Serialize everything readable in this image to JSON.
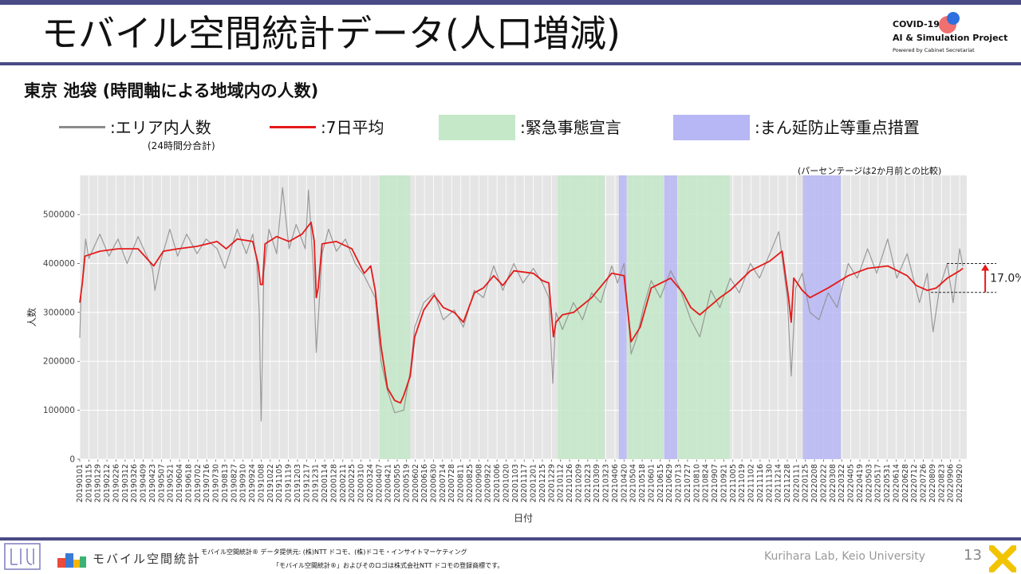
{
  "header": {
    "title": "モバイル空間統計データ(人口増減)",
    "badge": {
      "line1": "COVID-19",
      "line2": "AI & Simulation Project",
      "line3": "Powered by Cabinet Secretariat",
      "colors": {
        "red": "#f07070",
        "blue": "#2f6fe0"
      }
    }
  },
  "subtitle": "東京 池袋 (時間軸による地域内の人数)",
  "legend": {
    "daily": ":エリア内人数",
    "daily_note": "(24時間分合計)",
    "avg": ":7日平均",
    "emergency": ":緊急事態宣言",
    "prevention": ":まん延防止等重点措置",
    "colors": {
      "daily": "#8c8c8c",
      "avg": "#e41a1a",
      "emergency": "#c4e8c8",
      "prevention": "#b7b7f5"
    }
  },
  "compare_note": "(パーセンテージは2か月前との比較)",
  "chart_data": {
    "type": "line",
    "xlabel": "日付",
    "ylabel": "人数",
    "ylim": [
      0,
      580000
    ],
    "yticks": [
      0,
      100000,
      200000,
      300000,
      400000,
      500000
    ],
    "ytick_labels": [
      "0",
      "100000",
      "200000",
      "300000",
      "400000",
      "500000"
    ],
    "grid": true,
    "xtick_labels": [
      "20190101",
      "20190115",
      "20190129",
      "20190212",
      "20190226",
      "20190312",
      "20190326",
      "20190409",
      "20190423",
      "20190507",
      "20190521",
      "20190604",
      "20190618",
      "20190702",
      "20190716",
      "20190730",
      "20190813",
      "20190827",
      "20190910",
      "20190924",
      "20191008",
      "20191022",
      "20191105",
      "20191119",
      "20191203",
      "20191217",
      "20191231",
      "20200114",
      "20200128",
      "20200211",
      "20200225",
      "20200310",
      "20200324",
      "20200407",
      "20200421",
      "20200505",
      "20200519",
      "20200602",
      "20200616",
      "20200630",
      "20200714",
      "20200728",
      "20200811",
      "20200825",
      "20200908",
      "20200922",
      "20201006",
      "20201020",
      "20201103",
      "20201117",
      "20201201",
      "20201215",
      "20201229",
      "20210112",
      "20210126",
      "20210209",
      "20210223",
      "20210309",
      "20210323",
      "20210406",
      "20210420",
      "20210504",
      "20210518",
      "20210601",
      "20210615",
      "20210629",
      "20210713",
      "20210727",
      "20210810",
      "20210824",
      "20210907",
      "20210921",
      "20211005",
      "20211019",
      "20211102",
      "20211116",
      "20211130",
      "20211214",
      "20211228",
      "20220111",
      "20220125",
      "20220208",
      "20220222",
      "20220308",
      "20220322",
      "20220405",
      "20220419",
      "20220503",
      "20220517",
      "20220531",
      "20220614",
      "20220628",
      "20220712",
      "20220726",
      "20220809",
      "20220823",
      "20220906",
      "20220920"
    ],
    "periods": [
      {
        "type": "emergency",
        "start": "20200407",
        "end": "20200525"
      },
      {
        "type": "emergency",
        "start": "20210108",
        "end": "20210321"
      },
      {
        "type": "prevention",
        "start": "20210412",
        "end": "20210424"
      },
      {
        "type": "emergency",
        "start": "20210425",
        "end": "20210620"
      },
      {
        "type": "prevention",
        "start": "20210621",
        "end": "20210711"
      },
      {
        "type": "emergency",
        "start": "20210712",
        "end": "20210930"
      },
      {
        "type": "prevention",
        "start": "20220121",
        "end": "20220321"
      }
    ],
    "series": [
      {
        "key": "daily",
        "points": [
          [
            "20190101",
            248000
          ],
          [
            "20190103",
            335000
          ],
          [
            "20190106",
            380000
          ],
          [
            "20190110",
            450000
          ],
          [
            "20190115",
            410000
          ],
          [
            "20190201",
            460000
          ],
          [
            "20190215",
            415000
          ],
          [
            "20190301",
            450000
          ],
          [
            "20190315",
            400000
          ],
          [
            "20190401",
            455000
          ],
          [
            "20190423",
            390000
          ],
          [
            "20190427",
            345000
          ],
          [
            "20190506",
            405000
          ],
          [
            "20190520",
            470000
          ],
          [
            "20190601",
            415000
          ],
          [
            "20190615",
            460000
          ],
          [
            "20190701",
            420000
          ],
          [
            "20190715",
            450000
          ],
          [
            "20190801",
            430000
          ],
          [
            "20190813",
            390000
          ],
          [
            "20190901",
            470000
          ],
          [
            "20190915",
            420000
          ],
          [
            "20190925",
            460000
          ],
          [
            "20191001",
            405000
          ],
          [
            "20191005",
            300000
          ],
          [
            "20191008",
            78000
          ],
          [
            "20191012",
            380000
          ],
          [
            "20191020",
            470000
          ],
          [
            "20191101",
            420000
          ],
          [
            "20191110",
            555000
          ],
          [
            "20191120",
            430000
          ],
          [
            "20191201",
            480000
          ],
          [
            "20191215",
            430000
          ],
          [
            "20191220",
            550000
          ],
          [
            "20191228",
            380000
          ],
          [
            "20200101",
            218000
          ],
          [
            "20200110",
            420000
          ],
          [
            "20200120",
            470000
          ],
          [
            "20200201",
            425000
          ],
          [
            "20200215",
            450000
          ],
          [
            "20200301",
            400000
          ],
          [
            "20200315",
            375000
          ],
          [
            "20200401",
            330000
          ],
          [
            "20200410",
            200000
          ],
          [
            "20200420",
            140000
          ],
          [
            "20200501",
            95000
          ],
          [
            "20200515",
            100000
          ],
          [
            "20200525",
            180000
          ],
          [
            "20200601",
            270000
          ],
          [
            "20200615",
            320000
          ],
          [
            "20200701",
            340000
          ],
          [
            "20200715",
            285000
          ],
          [
            "20200801",
            305000
          ],
          [
            "20200815",
            270000
          ],
          [
            "20200901",
            345000
          ],
          [
            "20200915",
            330000
          ],
          [
            "20201001",
            395000
          ],
          [
            "20201015",
            345000
          ],
          [
            "20201101",
            400000
          ],
          [
            "20201115",
            360000
          ],
          [
            "20201201",
            390000
          ],
          [
            "20201215",
            360000
          ],
          [
            "20201225",
            330000
          ],
          [
            "20201231",
            155000
          ],
          [
            "20210105",
            300000
          ],
          [
            "20210115",
            265000
          ],
          [
            "20210201",
            320000
          ],
          [
            "20210215",
            285000
          ],
          [
            "20210301",
            340000
          ],
          [
            "20210315",
            320000
          ],
          [
            "20210401",
            395000
          ],
          [
            "20210410",
            360000
          ],
          [
            "20210420",
            400000
          ],
          [
            "20210501",
            215000
          ],
          [
            "20210510",
            250000
          ],
          [
            "20210520",
            310000
          ],
          [
            "20210601",
            365000
          ],
          [
            "20210615",
            330000
          ],
          [
            "20210701",
            385000
          ],
          [
            "20210715",
            350000
          ],
          [
            "20210801",
            285000
          ],
          [
            "20210815",
            250000
          ],
          [
            "20210901",
            345000
          ],
          [
            "20210915",
            310000
          ],
          [
            "20211001",
            370000
          ],
          [
            "20211015",
            340000
          ],
          [
            "20211101",
            400000
          ],
          [
            "20211115",
            370000
          ],
          [
            "20211201",
            420000
          ],
          [
            "20211215",
            465000
          ],
          [
            "20211228",
            330000
          ],
          [
            "20220103",
            170000
          ],
          [
            "20220110",
            350000
          ],
          [
            "20220120",
            380000
          ],
          [
            "20220201",
            300000
          ],
          [
            "20220215",
            285000
          ],
          [
            "20220301",
            340000
          ],
          [
            "20220315",
            310000
          ],
          [
            "20220401",
            400000
          ],
          [
            "20220415",
            370000
          ],
          [
            "20220501",
            430000
          ],
          [
            "20220515",
            380000
          ],
          [
            "20220601",
            450000
          ],
          [
            "20220615",
            370000
          ],
          [
            "20220701",
            420000
          ],
          [
            "20220720",
            320000
          ],
          [
            "20220801",
            380000
          ],
          [
            "20220810",
            260000
          ],
          [
            "20220820",
            350000
          ],
          [
            "20220901",
            400000
          ],
          [
            "20220910",
            320000
          ],
          [
            "20220920",
            430000
          ],
          [
            "20220925",
            395000
          ]
        ]
      },
      {
        "key": "avg",
        "points": [
          [
            "20190101",
            320000
          ],
          [
            "20190105",
            360000
          ],
          [
            "20190109",
            415000
          ],
          [
            "20190201",
            425000
          ],
          [
            "20190301",
            430000
          ],
          [
            "20190401",
            430000
          ],
          [
            "20190425",
            395000
          ],
          [
            "20190510",
            425000
          ],
          [
            "20190601",
            430000
          ],
          [
            "20190701",
            435000
          ],
          [
            "20190801",
            445000
          ],
          [
            "20190815",
            430000
          ],
          [
            "20190901",
            450000
          ],
          [
            "20190925",
            445000
          ],
          [
            "20191003",
            400000
          ],
          [
            "20191007",
            357000
          ],
          [
            "20191010",
            357000
          ],
          [
            "20191014",
            440000
          ],
          [
            "20191101",
            455000
          ],
          [
            "20191120",
            445000
          ],
          [
            "20191210",
            460000
          ],
          [
            "20191224",
            484000
          ],
          [
            "20191229",
            445000
          ],
          [
            "20200101",
            330000
          ],
          [
            "20200104",
            350000
          ],
          [
            "20200110",
            440000
          ],
          [
            "20200201",
            445000
          ],
          [
            "20200225",
            430000
          ],
          [
            "20200315",
            380000
          ],
          [
            "20200325",
            395000
          ],
          [
            "20200401",
            345000
          ],
          [
            "20200410",
            230000
          ],
          [
            "20200420",
            145000
          ],
          [
            "20200501",
            120000
          ],
          [
            "20200510",
            115000
          ],
          [
            "20200515",
            130000
          ],
          [
            "20200525",
            170000
          ],
          [
            "20200601",
            250000
          ],
          [
            "20200615",
            305000
          ],
          [
            "20200701",
            335000
          ],
          [
            "20200715",
            310000
          ],
          [
            "20200801",
            300000
          ],
          [
            "20200815",
            280000
          ],
          [
            "20200901",
            340000
          ],
          [
            "20200915",
            350000
          ],
          [
            "20201001",
            375000
          ],
          [
            "20201015",
            355000
          ],
          [
            "20201101",
            385000
          ],
          [
            "20201201",
            380000
          ],
          [
            "20201215",
            365000
          ],
          [
            "20201225",
            360000
          ],
          [
            "20210101",
            250000
          ],
          [
            "20210105",
            280000
          ],
          [
            "20210115",
            295000
          ],
          [
            "20210201",
            300000
          ],
          [
            "20210301",
            330000
          ],
          [
            "20210401",
            380000
          ],
          [
            "20210420",
            375000
          ],
          [
            "20210501",
            240000
          ],
          [
            "20210515",
            270000
          ],
          [
            "20210601",
            350000
          ],
          [
            "20210701",
            370000
          ],
          [
            "20210720",
            340000
          ],
          [
            "20210801",
            310000
          ],
          [
            "20210815",
            295000
          ],
          [
            "20210915",
            330000
          ],
          [
            "20211001",
            345000
          ],
          [
            "20211101",
            385000
          ],
          [
            "20211201",
            405000
          ],
          [
            "20211220",
            425000
          ],
          [
            "20211230",
            330000
          ],
          [
            "20220103",
            280000
          ],
          [
            "20220107",
            370000
          ],
          [
            "20220120",
            345000
          ],
          [
            "20220201",
            330000
          ],
          [
            "20220215",
            340000
          ],
          [
            "20220301",
            350000
          ],
          [
            "20220401",
            375000
          ],
          [
            "20220501",
            390000
          ],
          [
            "20220601",
            395000
          ],
          [
            "20220701",
            375000
          ],
          [
            "20220715",
            355000
          ],
          [
            "20220801",
            345000
          ],
          [
            "20220815",
            350000
          ],
          [
            "20220901",
            370000
          ],
          [
            "20220920",
            385000
          ],
          [
            "20220925",
            390000
          ]
        ]
      }
    ],
    "annotation": {
      "label": "17.0%",
      "from": 341000,
      "to": 400000
    }
  },
  "footer": {
    "mobile_logo_text": "モバイル空間統計",
    "credit_line1": "モバイル空間統計® データ提供元: (株)NTT ドコモ、(株)ドコモ・インサイトマーケティング",
    "credit_line2": "「モバイル空間統計®」およびそのロゴは株式会社NTT ドコモの登録商標です。",
    "lab": "Kurihara Lab, Keio University",
    "page": "13",
    "colors": {
      "x_mark": "#f2c400"
    }
  }
}
